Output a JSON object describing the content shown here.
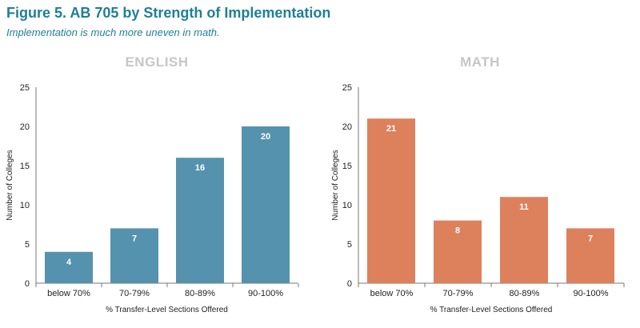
{
  "figure": {
    "title": "Figure 5. AB 705 by Strength of Implementation",
    "subtitle": "Implementation is much more uneven in math."
  },
  "colors": {
    "english": "#5592ad",
    "math": "#dd815d",
    "title": "#1f7f96"
  },
  "chart_data": [
    {
      "type": "bar",
      "title": "ENGLISH",
      "categories": [
        "below 70%",
        "70-79%",
        "80-89%",
        "90-100%"
      ],
      "values": [
        4,
        7,
        16,
        20
      ],
      "xlabel": "% Transfer-Level Sections Offered",
      "ylabel": "Number of Colleges",
      "ylim": [
        0,
        25
      ],
      "yticks": [
        "0",
        "5",
        "10",
        "15",
        "20",
        "25"
      ],
      "color": "#5592ad",
      "grid": false
    },
    {
      "type": "bar",
      "title": "MATH",
      "categories": [
        "below 70%",
        "70-79%",
        "80-89%",
        "90-100%"
      ],
      "values": [
        21,
        8,
        11,
        7
      ],
      "xlabel": "% Transfer-Level Sections Offered",
      "ylabel": "Number of Colleges",
      "ylim": [
        0,
        25
      ],
      "yticks": [
        "0",
        "5",
        "10",
        "15",
        "20",
        "25"
      ],
      "color": "#dd815d",
      "grid": false
    }
  ]
}
